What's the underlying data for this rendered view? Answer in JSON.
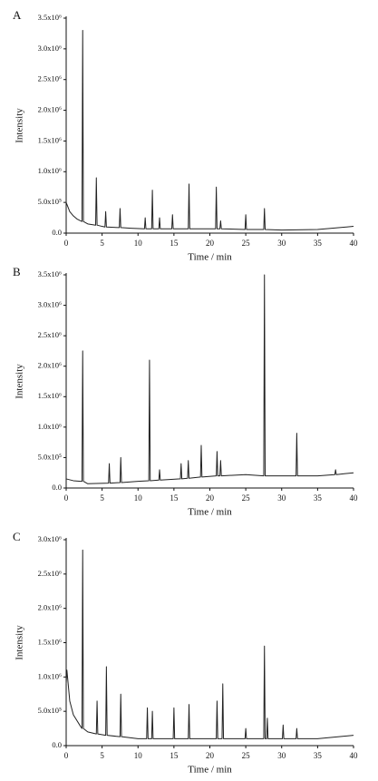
{
  "chart_data": [
    {
      "type": "line",
      "panel_label": "A",
      "xlabel": "Time / min",
      "ylabel": "Intensity",
      "color": "#222222",
      "xlim": [
        0,
        40
      ],
      "xticks": [
        0,
        5,
        10,
        15,
        20,
        25,
        30,
        35,
        40
      ],
      "ylim": [
        0,
        3500000
      ],
      "yticks": [
        {
          "value": 0,
          "label": "0.0"
        },
        {
          "value": 500000,
          "label": "5.0x10⁵"
        },
        {
          "value": 1000000,
          "label": "1.0x10⁶"
        },
        {
          "value": 1500000,
          "label": "1.5x10⁶"
        },
        {
          "value": 2000000,
          "label": "2.0x10⁶"
        },
        {
          "value": 2500000,
          "label": "2.5x10⁶"
        },
        {
          "value": 3000000,
          "label": "3.0x10⁶"
        },
        {
          "value": 3500000,
          "label": "3.5x10⁶"
        }
      ],
      "x": [
        0,
        0.5,
        1,
        1.5,
        2,
        2.2,
        2.3,
        2.4,
        3,
        4.1,
        4.2,
        4.3,
        5,
        5.4,
        5.5,
        5.6,
        7.4,
        7.5,
        7.6,
        9,
        10.9,
        11,
        11.1,
        11.9,
        12,
        12.1,
        12.9,
        13,
        13.1,
        14.7,
        14.8,
        14.9,
        17,
        17.1,
        17.2,
        20.8,
        20.9,
        21,
        21.4,
        21.5,
        21.6,
        24.9,
        25,
        25.1,
        27.5,
        27.6,
        27.7,
        30,
        35,
        40
      ],
      "values": [
        500000,
        350000,
        280000,
        230000,
        200000,
        190000,
        3300000,
        190000,
        150000,
        130000,
        900000,
        130000,
        110000,
        100000,
        350000,
        100000,
        90000,
        400000,
        90000,
        80000,
        70000,
        250000,
        70000,
        70000,
        700000,
        70000,
        70000,
        250000,
        70000,
        70000,
        300000,
        70000,
        70000,
        800000,
        70000,
        70000,
        750000,
        70000,
        70000,
        200000,
        70000,
        60000,
        300000,
        60000,
        60000,
        400000,
        60000,
        50000,
        60000,
        110000
      ]
    },
    {
      "type": "line",
      "panel_label": "B",
      "xlabel": "Time / min",
      "ylabel": "Intensity",
      "color": "#222222",
      "xlim": [
        0,
        40
      ],
      "xticks": [
        0,
        5,
        10,
        15,
        20,
        25,
        30,
        35,
        40
      ],
      "ylim": [
        0,
        3500000
      ],
      "yticks": [
        {
          "value": 0,
          "label": "0.0"
        },
        {
          "value": 500000,
          "label": "5.0x10⁵"
        },
        {
          "value": 1000000,
          "label": "1.0x10⁶"
        },
        {
          "value": 1500000,
          "label": "1.5x10⁶"
        },
        {
          "value": 2000000,
          "label": "2.0x10⁶"
        },
        {
          "value": 2500000,
          "label": "2.5x10⁶"
        },
        {
          "value": 3000000,
          "label": "3.0x10⁶"
        },
        {
          "value": 3500000,
          "label": "3.5x10⁶"
        }
      ],
      "x": [
        0,
        1,
        2,
        2.2,
        2.3,
        2.4,
        3,
        5.9,
        6,
        6.1,
        7.5,
        7.6,
        7.7,
        10,
        11.5,
        11.6,
        11.7,
        12.9,
        13,
        13.1,
        15.9,
        16,
        16.1,
        16.9,
        17,
        17.1,
        18.7,
        18.8,
        18.9,
        20.9,
        21,
        21.1,
        21.4,
        21.5,
        21.6,
        25,
        27.5,
        27.6,
        27.7,
        30,
        32,
        32.1,
        32.2,
        35,
        37.4,
        37.5,
        37.6,
        40
      ],
      "values": [
        150000,
        120000,
        110000,
        110000,
        2250000,
        110000,
        70000,
        80000,
        400000,
        80000,
        90000,
        500000,
        90000,
        110000,
        120000,
        2100000,
        120000,
        130000,
        300000,
        130000,
        150000,
        400000,
        150000,
        160000,
        450000,
        160000,
        180000,
        700000,
        180000,
        200000,
        600000,
        200000,
        200000,
        450000,
        200000,
        220000,
        200000,
        3500000,
        200000,
        200000,
        200000,
        900000,
        200000,
        200000,
        220000,
        300000,
        220000,
        250000
      ]
    },
    {
      "type": "line",
      "panel_label": "C",
      "xlabel": "Time / min",
      "ylabel": "Intensity",
      "color": "#222222",
      "xlim": [
        0,
        40
      ],
      "xticks": [
        0,
        5,
        10,
        15,
        20,
        25,
        30,
        35,
        40
      ],
      "ylim": [
        0,
        3000000
      ],
      "yticks": [
        {
          "value": 0,
          "label": "0.0"
        },
        {
          "value": 500000,
          "label": "5.0x10⁵"
        },
        {
          "value": 1000000,
          "label": "1.0x10⁶"
        },
        {
          "value": 1500000,
          "label": "1.5x10⁶"
        },
        {
          "value": 2000000,
          "label": "2.0x10⁶"
        },
        {
          "value": 2500000,
          "label": "2.5x10⁶"
        },
        {
          "value": 3000000,
          "label": "3.0x10⁶"
        }
      ],
      "x": [
        0,
        0.1,
        0.5,
        1,
        2,
        2.2,
        2.3,
        2.4,
        3,
        4.2,
        4.3,
        4.4,
        5.5,
        5.6,
        5.7,
        7.5,
        7.6,
        7.7,
        10,
        11.2,
        11.3,
        11.4,
        11.9,
        12,
        12.1,
        14.9,
        15,
        15.1,
        17,
        17.1,
        17.2,
        20.9,
        21,
        21.1,
        21.7,
        21.8,
        21.9,
        24.9,
        25,
        25.1,
        27.5,
        27.6,
        27.7,
        27.9,
        28,
        28.1,
        30.1,
        30.2,
        30.3,
        32,
        32.1,
        32.2,
        35,
        40
      ],
      "values": [
        900000,
        1100000,
        650000,
        450000,
        280000,
        250000,
        2850000,
        250000,
        200000,
        170000,
        650000,
        170000,
        150000,
        1150000,
        150000,
        130000,
        750000,
        130000,
        100000,
        100000,
        550000,
        100000,
        100000,
        500000,
        100000,
        100000,
        550000,
        100000,
        100000,
        600000,
        100000,
        100000,
        650000,
        100000,
        100000,
        900000,
        100000,
        100000,
        250000,
        100000,
        100000,
        1450000,
        100000,
        100000,
        400000,
        100000,
        100000,
        300000,
        100000,
        100000,
        250000,
        100000,
        100000,
        150000
      ]
    }
  ]
}
